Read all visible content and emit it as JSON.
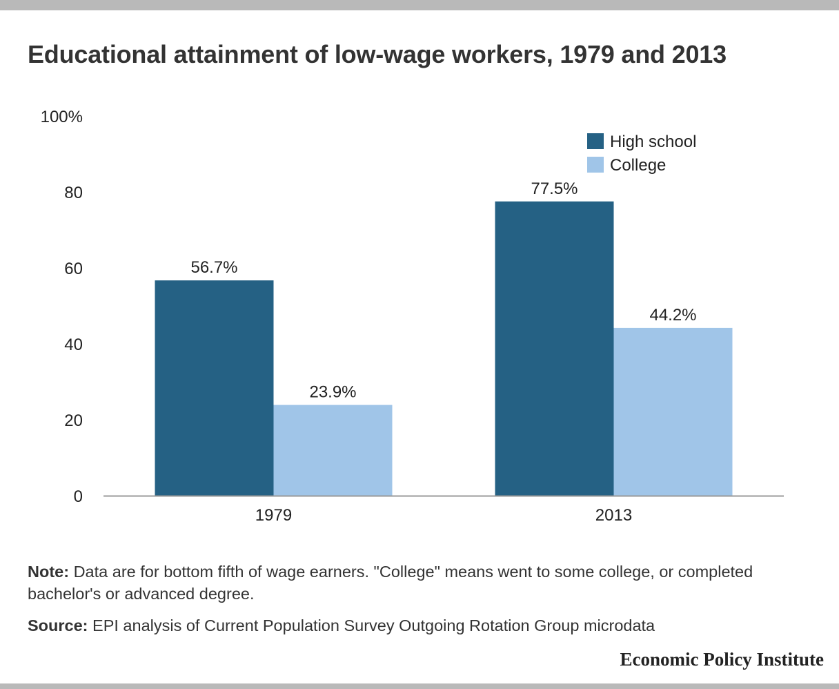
{
  "title": "Educational attainment of low-wage workers, 1979 and 2013",
  "colors": {
    "high_school": "#256184",
    "college": "#a0c5e8",
    "axis": "#999999"
  },
  "chart_data": {
    "type": "bar",
    "title": "Educational attainment of low-wage workers, 1979 and 2013",
    "xlabel": "",
    "ylabel": "",
    "categories": [
      "1979",
      "2013"
    ],
    "series": [
      {
        "name": "High school",
        "values": [
          56.7,
          77.5
        ],
        "labels": [
          "56.7%",
          "77.5%"
        ]
      },
      {
        "name": "College",
        "values": [
          23.9,
          44.2
        ],
        "labels": [
          "23.9%",
          "44.2%"
        ]
      }
    ],
    "ylim": [
      0,
      100
    ],
    "yticks": [
      0,
      20,
      40,
      60,
      80,
      100
    ],
    "ytick_labels": [
      "0",
      "20",
      "40",
      "60",
      "80",
      "100%"
    ],
    "grid": false,
    "legend": "top-right"
  },
  "note": {
    "label": "Note:",
    "text": " Data are for bottom fifth of wage earners.  \"College\" means went to some college, or completed bachelor's or advanced degree."
  },
  "source": {
    "label": "Source:",
    "text": " EPI analysis of Current Population Survey Outgoing Rotation Group microdata"
  },
  "brand": "Economic Policy Institute"
}
